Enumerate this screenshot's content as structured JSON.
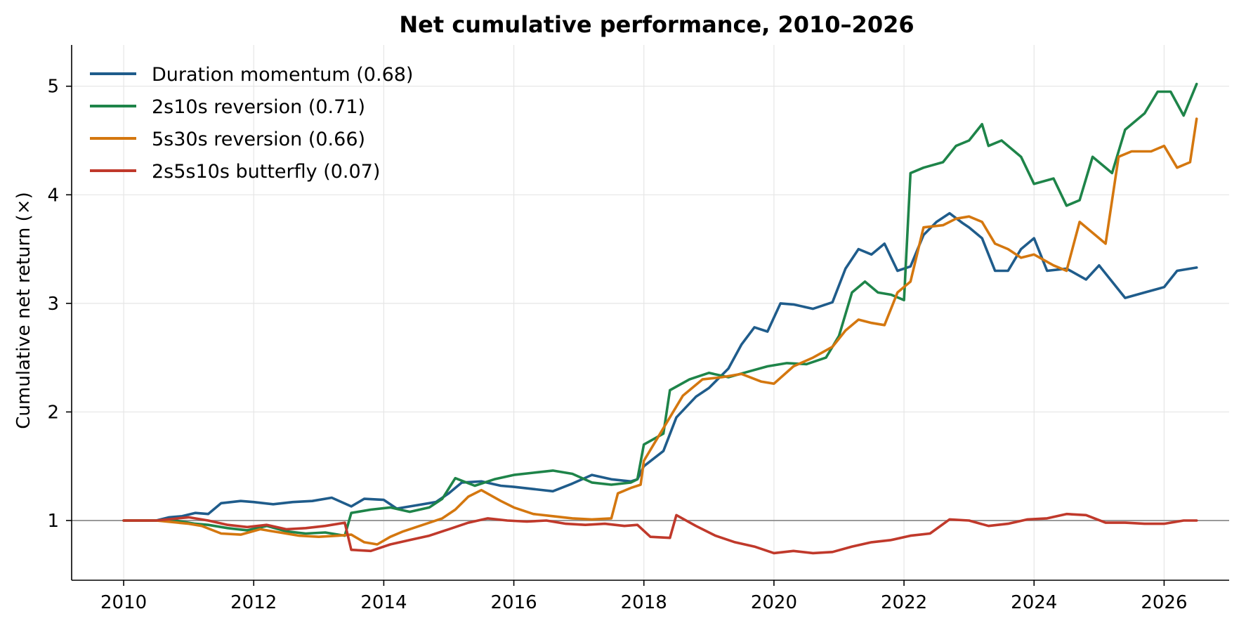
{
  "chart_data": {
    "type": "line",
    "title": "Net cumulative performance, 2010–2026",
    "xlabel": "",
    "ylabel": "Cumulative net return (×)",
    "xlim": [
      2009.2,
      2027.0
    ],
    "ylim": [
      0.45,
      5.38
    ],
    "x_ticks": [
      2010,
      2012,
      2014,
      2016,
      2018,
      2020,
      2022,
      2024,
      2026
    ],
    "x_tick_labels": [
      "2010",
      "2012",
      "2014",
      "2016",
      "2018",
      "2020",
      "2022",
      "2024",
      "2026"
    ],
    "y_ticks": [
      1,
      2,
      3,
      4,
      5
    ],
    "y_tick_labels": [
      "1",
      "2",
      "3",
      "4",
      "5"
    ],
    "reference_line": 1,
    "grid": true,
    "legend_position": "top-left",
    "series": [
      {
        "name": "Duration momentum  (0.68)",
        "color": "#1f5c8b",
        "x": [
          2010.0,
          2010.5,
          2010.7,
          2010.9,
          2011.1,
          2011.3,
          2011.5,
          2011.8,
          2012.0,
          2012.3,
          2012.6,
          2012.9,
          2013.2,
          2013.5,
          2013.7,
          2014.0,
          2014.2,
          2014.5,
          2014.8,
          2015.0,
          2015.2,
          2015.5,
          2015.8,
          2016.0,
          2016.3,
          2016.6,
          2016.9,
          2017.2,
          2017.5,
          2017.8,
          2017.9,
          2018.0,
          2018.3,
          2018.5,
          2018.8,
          2019.0,
          2019.3,
          2019.5,
          2019.7,
          2019.9,
          2020.1,
          2020.3,
          2020.6,
          2020.9,
          2021.1,
          2021.3,
          2021.5,
          2021.7,
          2021.9,
          2022.1,
          2022.3,
          2022.5,
          2022.7,
          2022.9,
          2023.0,
          2023.2,
          2023.4,
          2023.6,
          2023.8,
          2024.0,
          2024.2,
          2024.5,
          2024.8,
          2025.0,
          2025.2,
          2025.4,
          2025.7,
          2026.0,
          2026.2,
          2026.5
        ],
        "y": [
          1.0,
          1.0,
          1.03,
          1.04,
          1.07,
          1.06,
          1.16,
          1.18,
          1.17,
          1.15,
          1.17,
          1.18,
          1.21,
          1.13,
          1.2,
          1.19,
          1.11,
          1.14,
          1.17,
          1.25,
          1.35,
          1.36,
          1.32,
          1.31,
          1.29,
          1.27,
          1.34,
          1.42,
          1.38,
          1.36,
          1.38,
          1.5,
          1.64,
          1.95,
          2.14,
          2.22,
          2.4,
          2.62,
          2.78,
          2.74,
          3.0,
          2.99,
          2.95,
          3.01,
          3.32,
          3.5,
          3.45,
          3.55,
          3.3,
          3.34,
          3.63,
          3.75,
          3.83,
          3.74,
          3.7,
          3.6,
          3.3,
          3.3,
          3.5,
          3.6,
          3.3,
          3.32,
          3.22,
          3.35,
          3.2,
          3.05,
          3.1,
          3.15,
          3.3,
          3.33
        ]
      },
      {
        "name": "2s10s reversion  (0.71)",
        "color": "#1e8449",
        "x": [
          2010.0,
          2010.5,
          2010.8,
          2011.1,
          2011.3,
          2011.6,
          2011.9,
          2012.2,
          2012.5,
          2012.8,
          2013.1,
          2013.4,
          2013.5,
          2013.8,
          2014.1,
          2014.4,
          2014.7,
          2014.9,
          2015.1,
          2015.4,
          2015.7,
          2016.0,
          2016.3,
          2016.6,
          2016.9,
          2017.2,
          2017.5,
          2017.8,
          2017.9,
          2018.0,
          2018.3,
          2018.4,
          2018.7,
          2019.0,
          2019.3,
          2019.6,
          2019.9,
          2020.2,
          2020.5,
          2020.8,
          2021.0,
          2021.2,
          2021.4,
          2021.6,
          2021.8,
          2022.0,
          2022.1,
          2022.3,
          2022.6,
          2022.8,
          2023.0,
          2023.2,
          2023.3,
          2023.5,
          2023.8,
          2024.0,
          2024.3,
          2024.5,
          2024.7,
          2024.9,
          2025.2,
          2025.4,
          2025.7,
          2025.9,
          2026.1,
          2026.3,
          2026.5
        ],
        "y": [
          1.0,
          1.0,
          1.0,
          0.97,
          0.96,
          0.93,
          0.91,
          0.95,
          0.9,
          0.88,
          0.89,
          0.86,
          1.07,
          1.1,
          1.12,
          1.08,
          1.12,
          1.2,
          1.39,
          1.32,
          1.38,
          1.42,
          1.44,
          1.46,
          1.43,
          1.35,
          1.33,
          1.35,
          1.38,
          1.7,
          1.8,
          2.2,
          2.3,
          2.36,
          2.32,
          2.37,
          2.42,
          2.45,
          2.44,
          2.5,
          2.7,
          3.1,
          3.2,
          3.1,
          3.08,
          3.03,
          4.2,
          4.25,
          4.3,
          4.45,
          4.5,
          4.65,
          4.45,
          4.5,
          4.35,
          4.1,
          4.15,
          3.9,
          3.95,
          4.35,
          4.2,
          4.6,
          4.75,
          4.95,
          4.95,
          4.73,
          5.02
        ]
      },
      {
        "name": "5s30s reversion  (0.66)",
        "color": "#d4770f",
        "x": [
          2010.0,
          2010.5,
          2011.0,
          2011.2,
          2011.5,
          2011.8,
          2012.1,
          2012.4,
          2012.7,
          2013.0,
          2013.3,
          2013.5,
          2013.7,
          2013.9,
          2014.1,
          2014.3,
          2014.6,
          2014.9,
          2015.1,
          2015.3,
          2015.5,
          2015.8,
          2016.0,
          2016.3,
          2016.6,
          2016.9,
          2017.2,
          2017.5,
          2017.6,
          2017.8,
          2017.95,
          2018.0,
          2018.3,
          2018.6,
          2018.9,
          2019.2,
          2019.5,
          2019.8,
          2020.0,
          2020.3,
          2020.6,
          2020.9,
          2021.1,
          2021.3,
          2021.5,
          2021.7,
          2021.9,
          2022.1,
          2022.3,
          2022.6,
          2022.8,
          2023.0,
          2023.2,
          2023.4,
          2023.6,
          2023.8,
          2024.0,
          2024.3,
          2024.5,
          2024.7,
          2024.9,
          2025.1,
          2025.3,
          2025.5,
          2025.8,
          2026.0,
          2026.2,
          2026.4,
          2026.5
        ],
        "y": [
          1.0,
          1.0,
          0.97,
          0.95,
          0.88,
          0.87,
          0.92,
          0.89,
          0.86,
          0.85,
          0.86,
          0.87,
          0.8,
          0.78,
          0.85,
          0.9,
          0.96,
          1.02,
          1.1,
          1.22,
          1.28,
          1.18,
          1.12,
          1.06,
          1.04,
          1.02,
          1.01,
          1.02,
          1.25,
          1.3,
          1.33,
          1.55,
          1.85,
          2.15,
          2.3,
          2.32,
          2.35,
          2.28,
          2.26,
          2.42,
          2.5,
          2.6,
          2.75,
          2.85,
          2.82,
          2.8,
          3.1,
          3.2,
          3.7,
          3.72,
          3.78,
          3.8,
          3.75,
          3.55,
          3.5,
          3.42,
          3.45,
          3.35,
          3.3,
          3.75,
          3.65,
          3.55,
          4.35,
          4.4,
          4.4,
          4.45,
          4.25,
          4.3,
          4.7
        ]
      },
      {
        "name": "2s5s10s butterfly  (0.07)",
        "color": "#c0392b",
        "x": [
          2010.0,
          2010.5,
          2011.0,
          2011.3,
          2011.6,
          2011.9,
          2012.2,
          2012.5,
          2012.8,
          2013.1,
          2013.4,
          2013.5,
          2013.8,
          2014.1,
          2014.4,
          2014.7,
          2015.0,
          2015.3,
          2015.6,
          2015.9,
          2016.2,
          2016.5,
          2016.8,
          2017.1,
          2017.4,
          2017.7,
          2017.9,
          2018.1,
          2018.4,
          2018.5,
          2018.8,
          2019.1,
          2019.4,
          2019.7,
          2020.0,
          2020.3,
          2020.6,
          2020.9,
          2021.2,
          2021.5,
          2021.8,
          2022.1,
          2022.4,
          2022.7,
          2023.0,
          2023.3,
          2023.6,
          2023.9,
          2024.2,
          2024.5,
          2024.8,
          2025.1,
          2025.4,
          2025.7,
          2026.0,
          2026.3,
          2026.5
        ],
        "y": [
          1.0,
          1.0,
          1.03,
          1.0,
          0.96,
          0.94,
          0.96,
          0.92,
          0.93,
          0.95,
          0.98,
          0.73,
          0.72,
          0.78,
          0.82,
          0.86,
          0.92,
          0.98,
          1.02,
          1.0,
          0.99,
          1.0,
          0.97,
          0.96,
          0.97,
          0.95,
          0.96,
          0.85,
          0.84,
          1.05,
          0.95,
          0.86,
          0.8,
          0.76,
          0.7,
          0.72,
          0.7,
          0.71,
          0.76,
          0.8,
          0.82,
          0.86,
          0.88,
          1.01,
          1.0,
          0.95,
          0.97,
          1.01,
          1.02,
          1.06,
          1.05,
          0.98,
          0.98,
          0.97,
          0.97,
          1.0,
          1.0
        ]
      }
    ]
  }
}
